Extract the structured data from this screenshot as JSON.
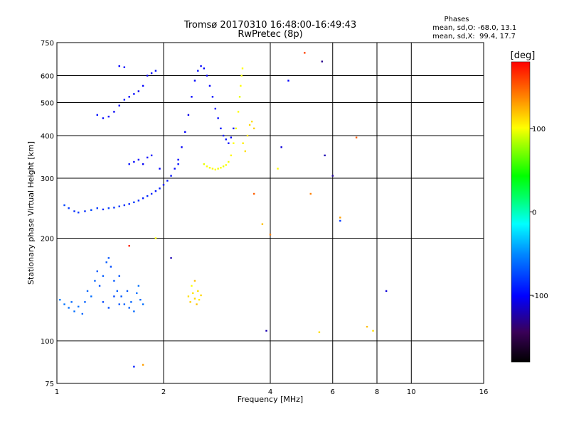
{
  "chart_data": {
    "type": "scatter",
    "title": "Tromsø 20170310 16:48:00-16:49:43",
    "subtitle": "RwPretec (8p)",
    "stats": {
      "header": "Phases",
      "line1": "mean, sd,O: -68.0, 13.1",
      "line2": "mean, sd,X:  99.4, 17.7"
    },
    "xlabel": "Frequency [MHz]",
    "ylabel": "Stationary phase Virtual Height [km]",
    "x_scale": "log",
    "y_scale": "log",
    "xlim": [
      1,
      16
    ],
    "ylim": [
      75,
      750
    ],
    "x_ticks": [
      1,
      2,
      4,
      6,
      8,
      10,
      16
    ],
    "x_tick_labels": [
      "1",
      "2",
      "4",
      "6",
      "8",
      "10",
      "16"
    ],
    "y_ticks": [
      75,
      100,
      200,
      300,
      400,
      500,
      600,
      750
    ],
    "y_tick_labels": [
      "75",
      "100",
      "200",
      "300",
      "400",
      "500",
      "600",
      "750"
    ],
    "grid": true,
    "colorbar": {
      "label": "[deg]",
      "range": [
        -180,
        180
      ],
      "ticks": [
        100,
        0,
        -100
      ],
      "tick_labels": [
        "100",
        "0",
        "-100"
      ]
    },
    "series": [
      {
        "points": [
          [
            1.05,
            250,
            -75
          ],
          [
            1.08,
            245,
            -80
          ],
          [
            1.12,
            240,
            -85
          ],
          [
            1.15,
            238,
            -80
          ],
          [
            1.2,
            240,
            -85
          ],
          [
            1.25,
            242,
            -75
          ],
          [
            1.3,
            245,
            -80
          ],
          [
            1.35,
            243,
            -85
          ],
          [
            1.4,
            245,
            -78
          ],
          [
            1.45,
            246,
            -82
          ],
          [
            1.5,
            248,
            -80
          ],
          [
            1.55,
            250,
            -85
          ],
          [
            1.6,
            252,
            -88
          ],
          [
            1.65,
            255,
            -80
          ],
          [
            1.7,
            258,
            -85
          ],
          [
            1.75,
            262,
            -90
          ],
          [
            1.8,
            266,
            -85
          ],
          [
            1.85,
            270,
            -88
          ],
          [
            1.9,
            275,
            -92
          ],
          [
            1.95,
            280,
            -90
          ],
          [
            2.0,
            287,
            -95
          ],
          [
            2.05,
            295,
            -92
          ],
          [
            2.1,
            305,
            -95
          ],
          [
            2.15,
            320,
            -98
          ],
          [
            2.2,
            340,
            -100
          ],
          [
            2.25,
            370,
            -102
          ],
          [
            2.3,
            410,
            -100
          ],
          [
            2.35,
            460,
            -105
          ],
          [
            2.4,
            520,
            -100
          ],
          [
            2.45,
            580,
            -98
          ],
          [
            2.5,
            620,
            -95
          ],
          [
            2.55,
            640,
            -100
          ],
          [
            2.6,
            630,
            -98
          ],
          [
            2.65,
            600,
            -102
          ],
          [
            2.7,
            560,
            -100
          ],
          [
            2.75,
            520,
            -95
          ],
          [
            2.8,
            480,
            -100
          ],
          [
            2.85,
            450,
            -98
          ],
          [
            2.9,
            420,
            -95
          ],
          [
            2.95,
            400,
            -92
          ],
          [
            3.0,
            390,
            -95
          ],
          [
            3.05,
            380,
            -98
          ],
          [
            3.1,
            395,
            -100
          ],
          [
            3.15,
            420,
            -95
          ],
          [
            1.3,
            460,
            -95
          ],
          [
            1.35,
            450,
            -98
          ],
          [
            1.4,
            455,
            -100
          ],
          [
            1.45,
            470,
            -102
          ],
          [
            1.5,
            490,
            -100
          ],
          [
            1.55,
            510,
            -95
          ],
          [
            1.6,
            520,
            -100
          ],
          [
            1.65,
            530,
            -98
          ],
          [
            1.7,
            540,
            -105
          ],
          [
            1.75,
            560,
            -100
          ],
          [
            1.8,
            600,
            -102
          ],
          [
            1.85,
            610,
            -98
          ],
          [
            1.9,
            620,
            -95
          ],
          [
            1.5,
            640,
            -100
          ],
          [
            1.55,
            635,
            -98
          ],
          [
            1.6,
            330,
            -95
          ],
          [
            1.65,
            335,
            -98
          ],
          [
            1.7,
            340,
            -100
          ],
          [
            1.75,
            330,
            -102
          ],
          [
            1.8,
            345,
            -100
          ],
          [
            1.85,
            350,
            -98
          ]
        ]
      },
      {
        "points": [
          [
            2.6,
            330,
            95
          ],
          [
            2.65,
            325,
            100
          ],
          [
            2.7,
            322,
            98
          ],
          [
            2.75,
            320,
            102
          ],
          [
            2.8,
            318,
            100
          ],
          [
            2.85,
            320,
            98
          ],
          [
            2.9,
            322,
            100
          ],
          [
            2.95,
            325,
            95
          ],
          [
            3.0,
            328,
            100
          ],
          [
            3.05,
            335,
            98
          ],
          [
            3.1,
            350,
            102
          ],
          [
            3.15,
            380,
            100
          ],
          [
            3.2,
            420,
            98
          ],
          [
            3.25,
            470,
            100
          ],
          [
            3.28,
            520,
            95
          ],
          [
            3.3,
            560,
            100
          ],
          [
            3.32,
            600,
            98
          ],
          [
            3.34,
            630,
            100
          ],
          [
            3.35,
            380,
            105
          ],
          [
            3.4,
            360,
            110
          ],
          [
            3.45,
            400,
            108
          ],
          [
            3.5,
            430,
            112
          ],
          [
            3.55,
            440,
            110
          ],
          [
            3.6,
            420,
            115
          ]
        ]
      },
      {
        "points": [
          [
            1.02,
            132,
            -55
          ],
          [
            1.05,
            128,
            -58
          ],
          [
            1.08,
            125,
            -60
          ],
          [
            1.1,
            130,
            -62
          ],
          [
            1.12,
            122,
            -60
          ],
          [
            1.15,
            126,
            -58
          ],
          [
            1.18,
            120,
            -62
          ],
          [
            1.2,
            130,
            -65
          ],
          [
            1.22,
            140,
            -63
          ],
          [
            1.25,
            135,
            -60
          ],
          [
            1.28,
            150,
            -65
          ],
          [
            1.3,
            160,
            -68
          ],
          [
            1.32,
            145,
            -70
          ],
          [
            1.35,
            155,
            -66
          ],
          [
            1.38,
            170,
            -68
          ],
          [
            1.4,
            175,
            -70
          ],
          [
            1.42,
            165,
            -72
          ],
          [
            1.45,
            150,
            -68
          ],
          [
            1.48,
            140,
            -66
          ],
          [
            1.5,
            155,
            -70
          ],
          [
            1.52,
            135,
            -68
          ],
          [
            1.55,
            128,
            -65
          ],
          [
            1.58,
            140,
            -68
          ],
          [
            1.6,
            125,
            -66
          ],
          [
            1.62,
            130,
            -64
          ],
          [
            1.65,
            122,
            -62
          ],
          [
            1.68,
            138,
            -60
          ],
          [
            1.7,
            145,
            -58
          ],
          [
            1.72,
            132,
            -62
          ],
          [
            1.75,
            128,
            -60
          ],
          [
            1.35,
            130,
            -75
          ],
          [
            1.4,
            125,
            -72
          ],
          [
            1.45,
            135,
            -74
          ],
          [
            1.5,
            128,
            -70
          ]
        ]
      },
      {
        "points": [
          [
            2.35,
            135,
            110
          ],
          [
            2.38,
            130,
            115
          ],
          [
            2.42,
            138,
            108
          ],
          [
            2.45,
            133,
            112
          ],
          [
            2.48,
            128,
            118
          ],
          [
            2.5,
            140,
            110
          ],
          [
            2.52,
            132,
            105
          ],
          [
            2.55,
            136,
            112
          ],
          [
            2.4,
            145,
            100
          ],
          [
            2.45,
            150,
            120
          ]
        ]
      },
      {
        "points": [
          [
            1.95,
            320,
            -100
          ],
          [
            2.2,
            330,
            -95
          ],
          [
            3.6,
            270,
            150
          ],
          [
            4.0,
            205,
            140
          ],
          [
            3.8,
            220,
            120
          ],
          [
            4.2,
            320,
            100
          ],
          [
            4.3,
            370,
            -110
          ],
          [
            4.5,
            580,
            -100
          ],
          [
            5.0,
            700,
            160
          ],
          [
            5.2,
            270,
            140
          ],
          [
            5.6,
            660,
            -130
          ],
          [
            5.7,
            350,
            -120
          ],
          [
            6.0,
            305,
            -125
          ],
          [
            6.3,
            230,
            130
          ],
          [
            6.3,
            225,
            -80
          ],
          [
            7.0,
            395,
            150
          ],
          [
            7.5,
            110,
            120
          ],
          [
            7.8,
            107,
            110
          ],
          [
            8.5,
            140,
            -110
          ],
          [
            3.9,
            107,
            -120
          ],
          [
            5.5,
            106,
            110
          ],
          [
            1.6,
            190,
            170
          ],
          [
            1.75,
            85,
            130
          ],
          [
            1.65,
            84,
            -90
          ],
          [
            1.9,
            200,
            100
          ],
          [
            2.1,
            175,
            -120
          ]
        ]
      }
    ]
  }
}
